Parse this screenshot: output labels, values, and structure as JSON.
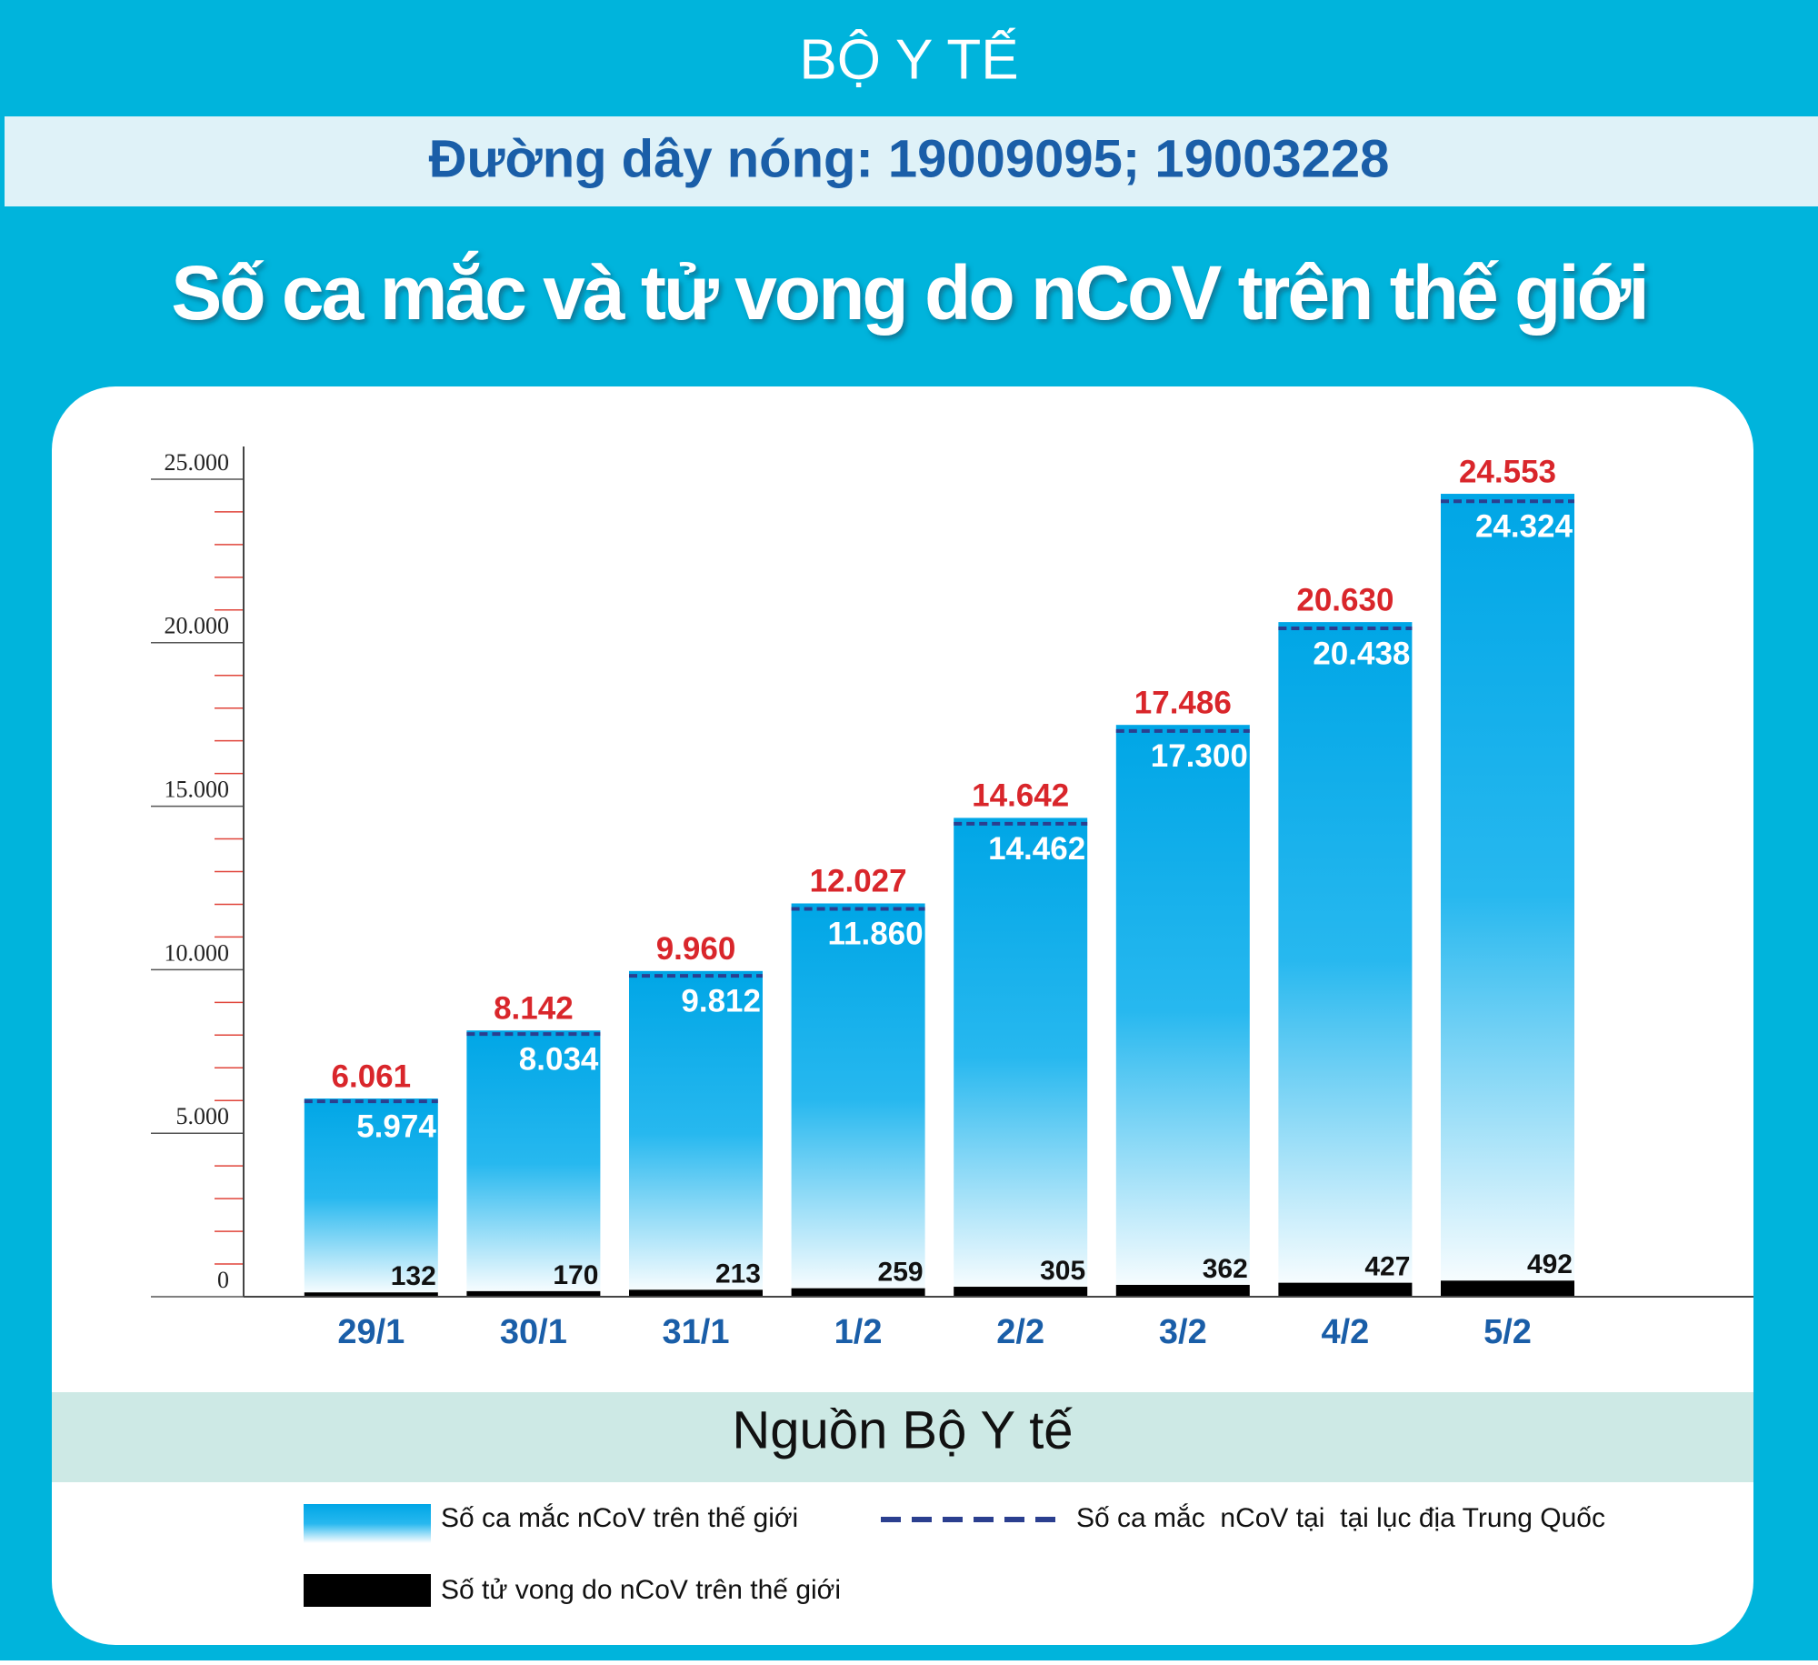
{
  "header": {
    "agency": "BỘ Y TẾ",
    "hotline": "Đường dây nóng: 19009095; 19003228"
  },
  "chart_data": {
    "type": "bar",
    "title": "Số ca mắc và tử vong do nCoV trên thế giới",
    "source": "Nguồn Bộ Y tế",
    "categories": [
      "29/1",
      "30/1",
      "31/1",
      "1/2",
      "2/2",
      "3/2",
      "4/2",
      "5/2"
    ],
    "series": [
      {
        "name": "Số ca mắc nCoV trên thế giới",
        "color": "#00aeea",
        "values": [
          6061,
          8142,
          9960,
          12027,
          14642,
          17486,
          20630,
          24553
        ],
        "value_labels": [
          "6.061",
          "8.142",
          "9.960",
          "12.027",
          "14.642",
          "17.486",
          "20.630",
          "24.553"
        ]
      },
      {
        "name": "Số ca mắc  nCoV tại  tại lục địa Trung Quốc",
        "color": "#2b3f8f",
        "values": [
          5974,
          8034,
          9812,
          11860,
          14462,
          17300,
          20438,
          24324
        ],
        "value_labels": [
          "5.974",
          "8.034",
          "9.812",
          "11.860",
          "14.462",
          "17.300",
          "20.438",
          "24.324"
        ]
      },
      {
        "name": "Số tử vong do nCoV trên thế giới",
        "color": "#000000",
        "values": [
          132,
          170,
          213,
          259,
          305,
          362,
          427,
          492
        ]
      }
    ],
    "ylim": [
      0,
      26000
    ],
    "yticks": [
      0,
      {
        "value": 5000,
        "label": "5.000"
      },
      {
        "value": 10000,
        "label": "10.000"
      },
      {
        "value": 15000,
        "label": "15.000"
      },
      {
        "value": 20000,
        "label": "20.000"
      },
      {
        "value": 25000,
        "label": "25.000"
      }
    ],
    "minor_yticks": [
      1000,
      2000,
      3000,
      4000,
      6000,
      7000,
      8000,
      9000,
      11000,
      12000,
      13000,
      14000,
      16000,
      17000,
      18000,
      19000,
      21000,
      22000,
      23000,
      24000
    ]
  }
}
